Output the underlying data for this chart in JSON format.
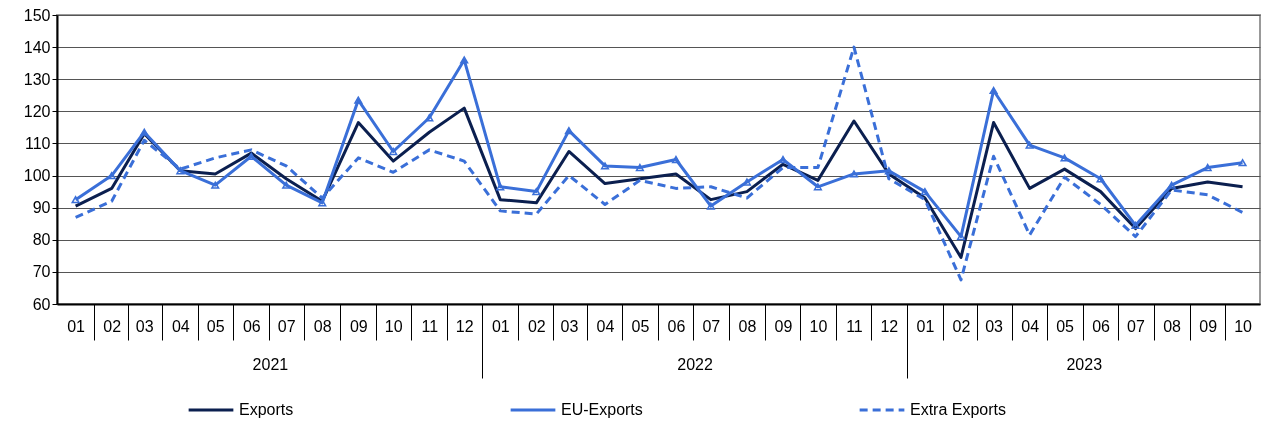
{
  "chart_data": {
    "type": "line",
    "x": [
      "2021-01",
      "2021-02",
      "2021-03",
      "2021-04",
      "2021-05",
      "2021-06",
      "2021-07",
      "2021-08",
      "2021-09",
      "2021-10",
      "2021-11",
      "2021-12",
      "2022-01",
      "2022-02",
      "2022-03",
      "2022-04",
      "2022-05",
      "2022-06",
      "2022-07",
      "2022-08",
      "2022-09",
      "2022-10",
      "2022-11",
      "2022-12",
      "2023-01",
      "2023-02",
      "2023-03",
      "2023-04",
      "2023-05",
      "2023-06",
      "2023-07",
      "2023-08",
      "2023-09",
      "2023-10"
    ],
    "xlim": [
      "2020-12-16",
      "2023-10-16"
    ],
    "xticks": [
      {
        "value": "2021-01",
        "label": "01"
      },
      {
        "value": "2021-02",
        "label": "02"
      },
      {
        "value": "2021-03",
        "label": "03"
      },
      {
        "value": "2021-04",
        "label": "04"
      },
      {
        "value": "2021-05",
        "label": "05"
      },
      {
        "value": "2021-06",
        "label": "06"
      },
      {
        "value": "2021-07",
        "label": "07"
      },
      {
        "value": "2021-08",
        "label": "08"
      },
      {
        "value": "2021-09",
        "label": "09"
      },
      {
        "value": "2021-10",
        "label": "10"
      },
      {
        "value": "2021-11",
        "label": "11"
      },
      {
        "value": "2021-12",
        "label": "12"
      },
      {
        "value": "2022-01",
        "label": "01"
      },
      {
        "value": "2022-02",
        "label": "02"
      },
      {
        "value": "2022-03",
        "label": "03"
      },
      {
        "value": "2022-04",
        "label": "04"
      },
      {
        "value": "2022-05",
        "label": "05"
      },
      {
        "value": "2022-06",
        "label": "06"
      },
      {
        "value": "2022-07",
        "label": "07"
      },
      {
        "value": "2022-08",
        "label": "08"
      },
      {
        "value": "2022-09",
        "label": "09"
      },
      {
        "value": "2022-10",
        "label": "10"
      },
      {
        "value": "2022-11",
        "label": "11"
      },
      {
        "value": "2022-12",
        "label": "12"
      },
      {
        "value": "2023-01",
        "label": "01"
      },
      {
        "value": "2023-02",
        "label": "02"
      },
      {
        "value": "2023-03",
        "label": "03"
      },
      {
        "value": "2023-04",
        "label": "04"
      },
      {
        "value": "2023-05",
        "label": "05"
      },
      {
        "value": "2023-06",
        "label": "06"
      },
      {
        "value": "2023-07",
        "label": "07"
      },
      {
        "value": "2023-08",
        "label": "08"
      },
      {
        "value": "2023-09",
        "label": "09"
      },
      {
        "value": "2023-10",
        "label": "10"
      }
    ],
    "series": [
      {
        "name": "Exports",
        "color": "#0b1f4f",
        "marker": "none",
        "line_style": "solid",
        "values": [
          90.5,
          96,
          113,
          101.5,
          100.5,
          107,
          99,
          92,
          116.5,
          104.5,
          113.5,
          121,
          92.5,
          91.5,
          107.5,
          97.5,
          99,
          100.5,
          92.5,
          95,
          103.5,
          98.5,
          117,
          100.5,
          93,
          74.5,
          116.5,
          96,
          102,
          95,
          83.5,
          96,
          98,
          96.5
        ]
      },
      {
        "name": "EU-Exports",
        "color": "#3a6fd8",
        "marker": "triangle",
        "line_style": "solid",
        "values": [
          92.5,
          100,
          113.5,
          101.5,
          97,
          106,
          97,
          91.5,
          123.5,
          107.5,
          118,
          136,
          96.5,
          95,
          114,
          103,
          102.5,
          105,
          90.5,
          98,
          105,
          96.5,
          100.5,
          101.5,
          95,
          81,
          126.5,
          109.5,
          105.5,
          99,
          84.5,
          97,
          102.5,
          104
        ]
      },
      {
        "name": "Extra Exports",
        "color": "#3a6fd8",
        "marker": "none",
        "line_style": "dashed",
        "values": [
          87,
          92,
          111,
          102,
          105.5,
          108,
          103,
          93,
          105.5,
          101,
          108,
          104.5,
          89,
          88,
          100,
          91,
          98.5,
          96,
          96.5,
          93,
          102.5,
          102.5,
          140,
          99,
          92.5,
          67.5,
          106,
          81.5,
          99.5,
          91,
          81,
          95.5,
          94,
          88.5
        ]
      }
    ],
    "ylim": [
      60,
      150
    ],
    "yticks": [
      60,
      70,
      80,
      90,
      100,
      110,
      120,
      130,
      140,
      150
    ],
    "annotations": [
      "2021",
      "2022",
      "2023"
    ],
    "grid": "y",
    "legend": "bottom"
  }
}
